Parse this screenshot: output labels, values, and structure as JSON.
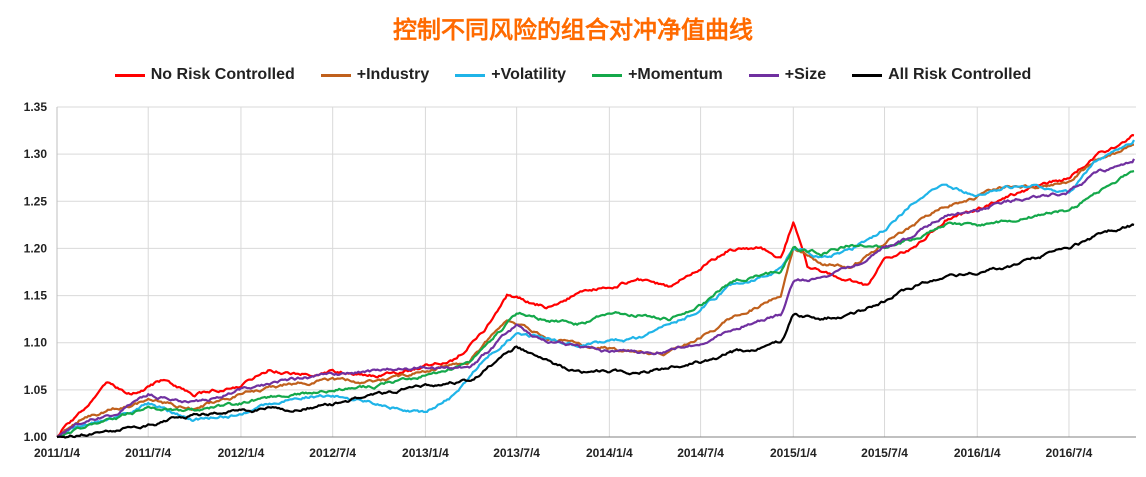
{
  "chart_data": {
    "type": "line",
    "title": "控制不同风险的组合对冲净值曲线",
    "xlabel": "",
    "ylabel": "",
    "ylim": [
      1.0,
      1.35
    ],
    "yticks": [
      "1.00",
      "1.05",
      "1.10",
      "1.15",
      "1.20",
      "1.25",
      "1.30",
      "1.35"
    ],
    "xticks": [
      "2011/1/4",
      "2011/7/4",
      "2012/1/4",
      "2012/7/4",
      "2013/1/4",
      "2013/7/4",
      "2014/1/4",
      "2014/7/4",
      "2015/1/4",
      "2015/7/4",
      "2016/1/4",
      "2016/7/4"
    ],
    "grid": true,
    "legend_position": "top",
    "series": [
      {
        "name": "No Risk Controlled",
        "color": "#ff0000",
        "values": [
          [
            "2011/1/4",
            1.0
          ],
          [
            "2011/3/1",
            1.03
          ],
          [
            "2011/4/15",
            1.055
          ],
          [
            "2011/6/1",
            1.045
          ],
          [
            "2011/8/1",
            1.06
          ],
          [
            "2011/10/1",
            1.045
          ],
          [
            "2012/1/4",
            1.055
          ],
          [
            "2012/3/1",
            1.072
          ],
          [
            "2012/5/1",
            1.065
          ],
          [
            "2012/7/4",
            1.07
          ],
          [
            "2012/10/1",
            1.065
          ],
          [
            "2013/1/4",
            1.075
          ],
          [
            "2013/3/1",
            1.082
          ],
          [
            "2013/5/1",
            1.112
          ],
          [
            "2013/6/15",
            1.15
          ],
          [
            "2013/7/4",
            1.148
          ],
          [
            "2013/9/1",
            1.138
          ],
          [
            "2013/11/1",
            1.152
          ],
          [
            "2014/1/4",
            1.16
          ],
          [
            "2014/3/1",
            1.168
          ],
          [
            "2014/5/1",
            1.16
          ],
          [
            "2014/7/4",
            1.18
          ],
          [
            "2014/9/1",
            1.2
          ],
          [
            "2014/11/1",
            1.2
          ],
          [
            "2014/12/10",
            1.19
          ],
          [
            "2015/1/4",
            1.228
          ],
          [
            "2015/2/1",
            1.18
          ],
          [
            "2015/4/1",
            1.17
          ],
          [
            "2015/6/1",
            1.16
          ],
          [
            "2015/7/4",
            1.19
          ],
          [
            "2015/9/1",
            1.2
          ],
          [
            "2015/11/1",
            1.23
          ],
          [
            "2016/1/4",
            1.24
          ],
          [
            "2016/3/1",
            1.255
          ],
          [
            "2016/5/1",
            1.265
          ],
          [
            "2016/7/4",
            1.275
          ],
          [
            "2016/9/1",
            1.3
          ],
          [
            "2016/10/15",
            1.31
          ],
          [
            "2016/11/10",
            1.32
          ]
        ]
      },
      {
        "name": "+Industry",
        "color": "#c0601c",
        "values": [
          [
            "2011/1/4",
            1.0
          ],
          [
            "2011/3/1",
            1.022
          ],
          [
            "2011/5/1",
            1.03
          ],
          [
            "2011/7/4",
            1.04
          ],
          [
            "2011/10/1",
            1.03
          ],
          [
            "2012/1/4",
            1.045
          ],
          [
            "2012/4/1",
            1.055
          ],
          [
            "2012/7/4",
            1.06
          ],
          [
            "2012/10/1",
            1.058
          ],
          [
            "2013/1/4",
            1.07
          ],
          [
            "2013/4/1",
            1.08
          ],
          [
            "2013/6/15",
            1.125
          ],
          [
            "2013/7/4",
            1.12
          ],
          [
            "2013/9/1",
            1.105
          ],
          [
            "2013/11/1",
            1.1
          ],
          [
            "2014/1/4",
            1.095
          ],
          [
            "2014/3/1",
            1.09
          ],
          [
            "2014/5/1",
            1.09
          ],
          [
            "2014/7/4",
            1.105
          ],
          [
            "2014/9/1",
            1.125
          ],
          [
            "2014/11/1",
            1.14
          ],
          [
            "2014/12/10",
            1.15
          ],
          [
            "2015/1/4",
            1.2
          ],
          [
            "2015/3/1",
            1.185
          ],
          [
            "2015/5/1",
            1.18
          ],
          [
            "2015/7/4",
            1.205
          ],
          [
            "2015/9/1",
            1.225
          ],
          [
            "2015/11/1",
            1.245
          ],
          [
            "2016/1/4",
            1.255
          ],
          [
            "2016/3/1",
            1.265
          ],
          [
            "2016/5/1",
            1.265
          ],
          [
            "2016/7/4",
            1.27
          ],
          [
            "2016/9/1",
            1.295
          ],
          [
            "2016/11/10",
            1.31
          ]
        ]
      },
      {
        "name": "+Volatility",
        "color": "#1fb4e8",
        "values": [
          [
            "2011/1/4",
            1.0
          ],
          [
            "2011/3/1",
            1.015
          ],
          [
            "2011/5/1",
            1.02
          ],
          [
            "2011/7/4",
            1.035
          ],
          [
            "2011/10/1",
            1.018
          ],
          [
            "2012/1/4",
            1.025
          ],
          [
            "2012/4/1",
            1.04
          ],
          [
            "2012/7/4",
            1.045
          ],
          [
            "2012/10/1",
            1.035
          ],
          [
            "2013/1/4",
            1.025
          ],
          [
            "2013/3/1",
            1.045
          ],
          [
            "2013/5/1",
            1.085
          ],
          [
            "2013/7/4",
            1.11
          ],
          [
            "2013/9/1",
            1.105
          ],
          [
            "2013/11/1",
            1.098
          ],
          [
            "2014/1/4",
            1.1
          ],
          [
            "2014/3/1",
            1.105
          ],
          [
            "2014/5/1",
            1.118
          ],
          [
            "2014/7/4",
            1.135
          ],
          [
            "2014/9/1",
            1.16
          ],
          [
            "2014/11/1",
            1.17
          ],
          [
            "2014/12/10",
            1.18
          ],
          [
            "2015/1/4",
            1.2
          ],
          [
            "2015/3/1",
            1.19
          ],
          [
            "2015/5/1",
            1.2
          ],
          [
            "2015/7/4",
            1.22
          ],
          [
            "2015/9/1",
            1.25
          ],
          [
            "2015/11/1",
            1.27
          ],
          [
            "2016/1/4",
            1.255
          ],
          [
            "2016/3/1",
            1.265
          ],
          [
            "2016/5/1",
            1.268
          ],
          [
            "2016/7/4",
            1.26
          ],
          [
            "2016/9/1",
            1.295
          ],
          [
            "2016/11/10",
            1.315
          ]
        ]
      },
      {
        "name": "+Momentum",
        "color": "#14a84a",
        "values": [
          [
            "2011/1/4",
            1.0
          ],
          [
            "2011/3/1",
            1.012
          ],
          [
            "2011/5/1",
            1.02
          ],
          [
            "2011/7/4",
            1.03
          ],
          [
            "2011/10/1",
            1.028
          ],
          [
            "2012/1/4",
            1.035
          ],
          [
            "2012/4/1",
            1.045
          ],
          [
            "2012/7/4",
            1.05
          ],
          [
            "2012/10/1",
            1.055
          ],
          [
            "2013/1/4",
            1.065
          ],
          [
            "2013/4/1",
            1.078
          ],
          [
            "2013/6/15",
            1.12
          ],
          [
            "2013/7/4",
            1.13
          ],
          [
            "2013/9/1",
            1.125
          ],
          [
            "2013/11/1",
            1.12
          ],
          [
            "2014/1/4",
            1.13
          ],
          [
            "2014/3/1",
            1.13
          ],
          [
            "2014/5/1",
            1.125
          ],
          [
            "2014/7/4",
            1.14
          ],
          [
            "2014/9/1",
            1.165
          ],
          [
            "2014/11/1",
            1.172
          ],
          [
            "2014/12/10",
            1.175
          ],
          [
            "2015/1/4",
            1.2
          ],
          [
            "2015/3/1",
            1.195
          ],
          [
            "2015/5/1",
            1.205
          ],
          [
            "2015/7/4",
            1.2
          ],
          [
            "2015/9/1",
            1.21
          ],
          [
            "2015/11/1",
            1.225
          ],
          [
            "2016/1/4",
            1.225
          ],
          [
            "2016/3/1",
            1.23
          ],
          [
            "2016/5/1",
            1.235
          ],
          [
            "2016/7/4",
            1.24
          ],
          [
            "2016/9/1",
            1.26
          ],
          [
            "2016/11/10",
            1.282
          ]
        ]
      },
      {
        "name": "+Size",
        "color": "#7030a0",
        "values": [
          [
            "2011/1/4",
            1.0
          ],
          [
            "2011/3/1",
            1.018
          ],
          [
            "2011/5/1",
            1.025
          ],
          [
            "2011/7/4",
            1.045
          ],
          [
            "2011/10/1",
            1.035
          ],
          [
            "2012/1/4",
            1.05
          ],
          [
            "2012/4/1",
            1.06
          ],
          [
            "2012/7/4",
            1.065
          ],
          [
            "2012/10/1",
            1.07
          ],
          [
            "2013/1/4",
            1.075
          ],
          [
            "2013/4/1",
            1.072
          ],
          [
            "2013/6/15",
            1.11
          ],
          [
            "2013/7/4",
            1.118
          ],
          [
            "2013/9/1",
            1.1
          ],
          [
            "2013/11/1",
            1.095
          ],
          [
            "2014/1/4",
            1.09
          ],
          [
            "2014/3/1",
            1.088
          ],
          [
            "2014/5/1",
            1.09
          ],
          [
            "2014/7/4",
            1.1
          ],
          [
            "2014/9/1",
            1.115
          ],
          [
            "2014/11/1",
            1.125
          ],
          [
            "2014/12/10",
            1.13
          ],
          [
            "2015/1/4",
            1.165
          ],
          [
            "2015/3/1",
            1.17
          ],
          [
            "2015/5/1",
            1.18
          ],
          [
            "2015/7/4",
            1.2
          ],
          [
            "2015/9/1",
            1.215
          ],
          [
            "2015/11/1",
            1.235
          ],
          [
            "2016/1/4",
            1.24
          ],
          [
            "2016/3/1",
            1.25
          ],
          [
            "2016/5/1",
            1.255
          ],
          [
            "2016/7/4",
            1.26
          ],
          [
            "2016/9/1",
            1.28
          ],
          [
            "2016/11/10",
            1.295
          ]
        ]
      },
      {
        "name": "All Risk Controlled",
        "color": "#000000",
        "values": [
          [
            "2011/1/4",
            1.0
          ],
          [
            "2011/4/1",
            1.005
          ],
          [
            "2011/7/4",
            1.012
          ],
          [
            "2011/9/1",
            1.022
          ],
          [
            "2011/12/1",
            1.025
          ],
          [
            "2012/1/4",
            1.028
          ],
          [
            "2012/4/1",
            1.03
          ],
          [
            "2012/7/4",
            1.035
          ],
          [
            "2012/10/1",
            1.045
          ],
          [
            "2013/1/4",
            1.055
          ],
          [
            "2013/4/1",
            1.06
          ],
          [
            "2013/6/15",
            1.09
          ],
          [
            "2013/7/4",
            1.095
          ],
          [
            "2013/9/1",
            1.08
          ],
          [
            "2013/11/1",
            1.068
          ],
          [
            "2014/1/4",
            1.07
          ],
          [
            "2014/3/1",
            1.068
          ],
          [
            "2014/5/1",
            1.072
          ],
          [
            "2014/7/4",
            1.08
          ],
          [
            "2014/9/1",
            1.09
          ],
          [
            "2014/11/1",
            1.095
          ],
          [
            "2014/12/10",
            1.1
          ],
          [
            "2015/1/4",
            1.13
          ],
          [
            "2015/3/1",
            1.125
          ],
          [
            "2015/5/1",
            1.13
          ],
          [
            "2015/7/4",
            1.145
          ],
          [
            "2015/9/1",
            1.16
          ],
          [
            "2015/11/1",
            1.17
          ],
          [
            "2016/1/4",
            1.175
          ],
          [
            "2016/3/1",
            1.18
          ],
          [
            "2016/5/1",
            1.19
          ],
          [
            "2016/7/4",
            1.2
          ],
          [
            "2016/9/1",
            1.215
          ],
          [
            "2016/11/10",
            1.225
          ]
        ]
      }
    ]
  }
}
